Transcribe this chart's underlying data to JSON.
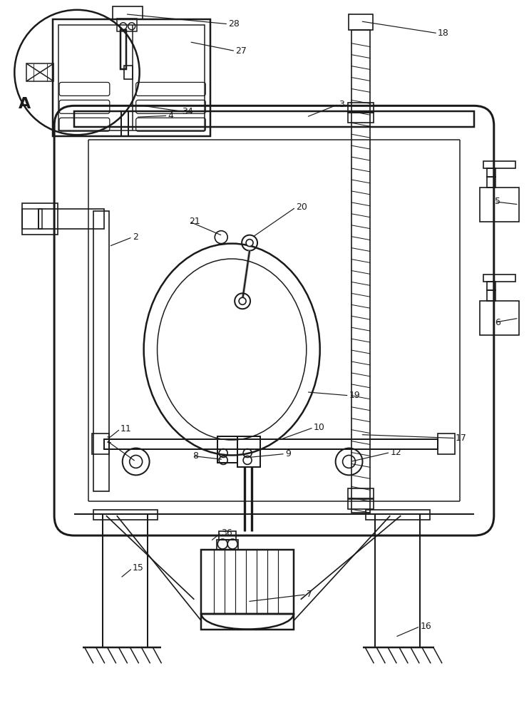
{
  "bg": "#ffffff",
  "lc": "#1a1a1a",
  "lw": 1.2,
  "fw": 7.42,
  "fh": 10.0
}
